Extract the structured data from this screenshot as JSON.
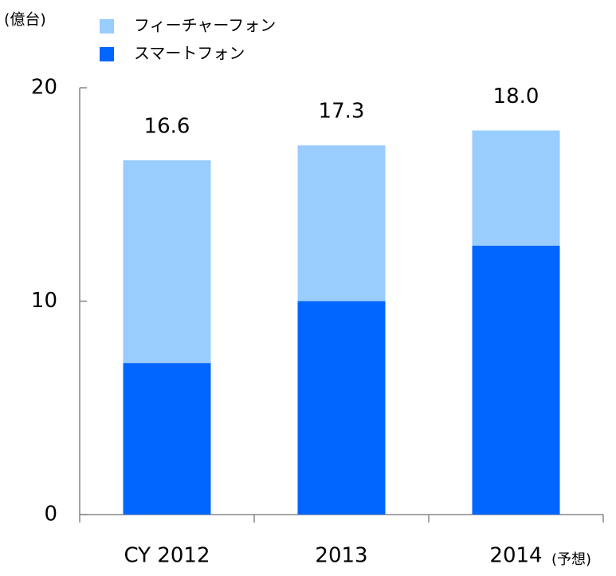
{
  "chart_data": {
    "type": "stacked_bar",
    "unit_label": "(億台)",
    "categories": [
      "CY 2012",
      "2013",
      "2014"
    ],
    "annotation": "(予想)",
    "series": [
      {
        "name": "スマートフォン",
        "color": "#0066ff",
        "values": [
          7.1,
          10.0,
          12.6
        ]
      },
      {
        "name": "フィーチャーフォン",
        "color": "#99ccff",
        "values": [
          9.5,
          7.3,
          5.4
        ]
      }
    ],
    "totals": [
      16.6,
      17.3,
      18.0
    ],
    "total_labels": [
      "16.6",
      "17.3",
      "18.0"
    ],
    "ylim": [
      0,
      20
    ],
    "yticks": [
      0,
      10,
      20
    ],
    "grid": false
  }
}
